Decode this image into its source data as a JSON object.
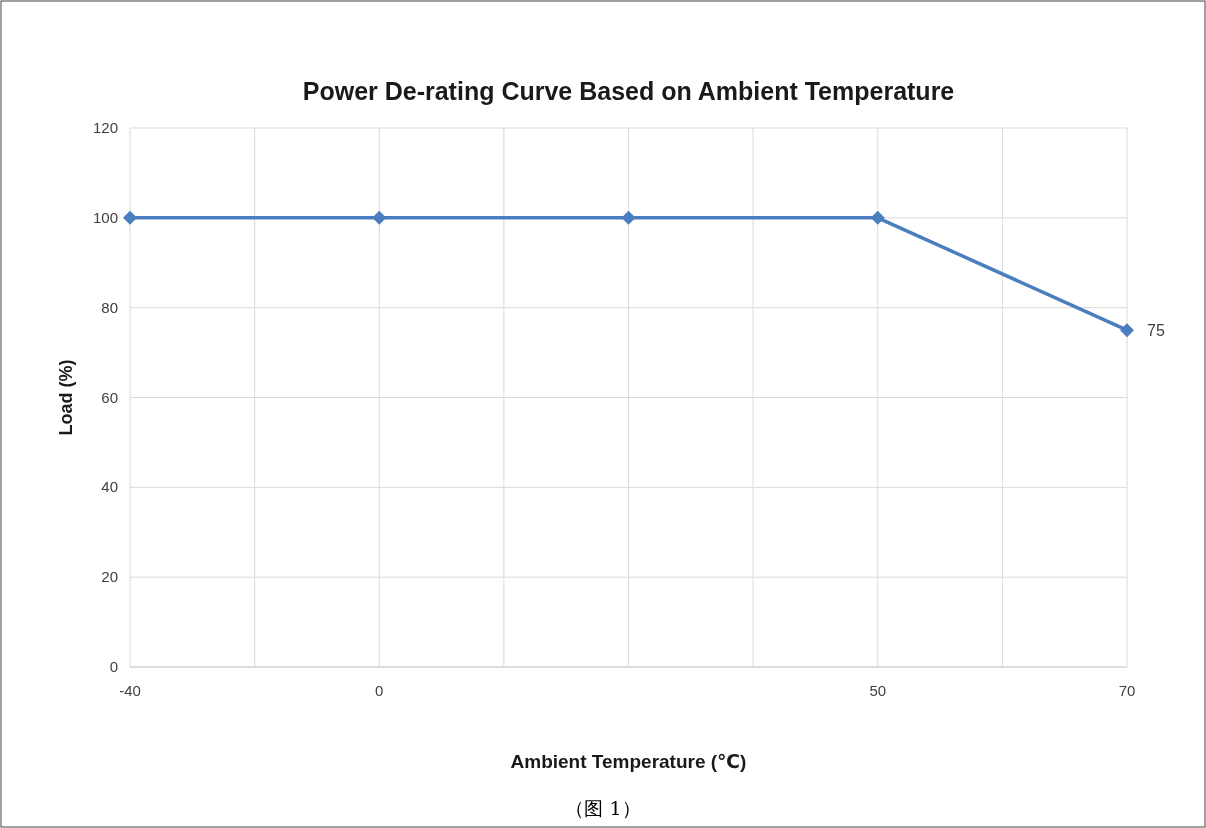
{
  "chart_data": {
    "type": "line",
    "title": "Power De-rating Curve Based on Ambient Temperature",
    "xlabel": "Ambient Temperature (℃)",
    "ylabel": "Load (%)",
    "annotations": [
      "（图 1）"
    ],
    "categories": [
      "-40",
      "0",
      null,
      "50",
      "70"
    ],
    "series": [
      {
        "color": "#4a7ebf",
        "values": [
          100,
          100,
          100,
          100,
          75
        ],
        "value_labels": [
          null,
          null,
          null,
          null,
          "75"
        ]
      }
    ],
    "ylim": [
      0,
      120
    ],
    "yticks": [
      0,
      20,
      40,
      60,
      80,
      100,
      120
    ],
    "grid": true,
    "marker": "diamond",
    "line_style": "solid"
  }
}
